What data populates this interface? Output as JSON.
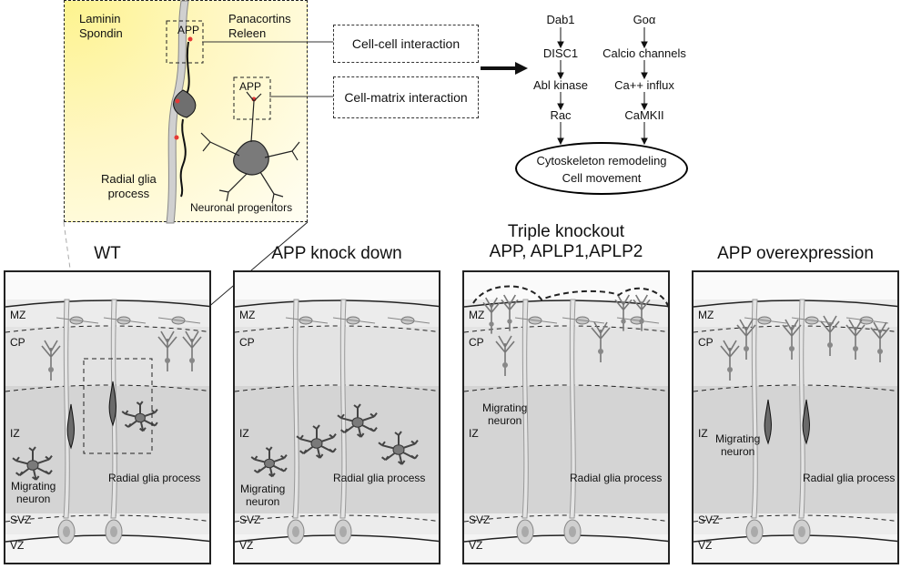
{
  "inset": {
    "top_left_label": "Laminin\nSpondin",
    "top_right_label": "Panacortins\nReleen",
    "app_top": "APP",
    "app_right": "APP",
    "radial_glia": "Radial glia\nprocess",
    "progenitors": "Neuronal progenitors"
  },
  "interactions": {
    "cell_cell": "Cell-cell interaction",
    "cell_matrix": "Cell-matrix interaction"
  },
  "pathway": {
    "left": [
      "Dab1",
      "DISC1",
      "Abl kinase",
      "Rac"
    ],
    "right": [
      "Goα",
      "Calcio channels",
      "Ca++ influx",
      "CaMKII"
    ],
    "outcome_line1": "Cytoskeleton remodeling",
    "outcome_line2": "Cell movement"
  },
  "panels": [
    {
      "title": "WT",
      "layers": [
        "MZ",
        "CP",
        "IZ",
        "SVZ",
        "VZ"
      ],
      "migrating": "Migrating\nneuron",
      "radial": "Radial glia process"
    },
    {
      "title": "APP knock down",
      "layers": [
        "MZ",
        "CP",
        "IZ",
        "SVZ",
        "VZ"
      ],
      "migrating": "Migrating\nneuron",
      "radial": "Radial glia process"
    },
    {
      "title": "Triple knockout\nAPP, APLP1,APLP2",
      "layers": [
        "MZ",
        "CP",
        "IZ",
        "SVZ",
        "VZ"
      ],
      "migrating": "Migrating\nneuron",
      "radial": "Radial glia process"
    },
    {
      "title": "APP overexpression",
      "layers": [
        "MZ",
        "CP",
        "IZ",
        "SVZ",
        "VZ"
      ],
      "migrating": "Migrating\nneuron",
      "radial": "Radial glia process"
    }
  ],
  "colors": {
    "inset_yellow": "#fdf38e",
    "cell_grey": "#7a7a7a",
    "panel_grey": "#d9d9d9",
    "app_red": "#e53935"
  }
}
